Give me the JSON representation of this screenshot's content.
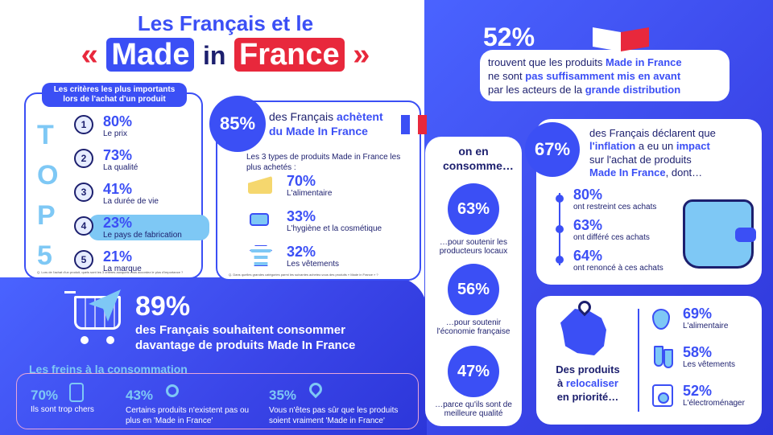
{
  "title": {
    "line1": "Les Français et le",
    "quote_open": "«",
    "made": "Made",
    "in": "in",
    "france": "France",
    "quote_close": "»"
  },
  "top5": {
    "header": "Les critères les plus importants lors de l'achat d'un produit",
    "letters": [
      "T",
      "O",
      "P",
      "5"
    ],
    "items": [
      {
        "rank": "1",
        "pct": "80%",
        "label": "Le prix"
      },
      {
        "rank": "2",
        "pct": "73%",
        "label": "La qualité"
      },
      {
        "rank": "3",
        "pct": "41%",
        "label": "La durée de vie"
      },
      {
        "rank": "4",
        "pct": "23%",
        "label": "Le pays de fabrication"
      },
      {
        "rank": "5",
        "pct": "21%",
        "label": "La marque"
      }
    ],
    "note": "Q. Lors de l'achat d'un produit, quels sont les 3 critères auxquels vous accordez le plus d'importance ?"
  },
  "buy": {
    "pct": "85%",
    "text1": "des Français",
    "text2": "achètent",
    "text3": "du Made In France",
    "types_title": "Les 3 types de produits  Made in France les plus achetés :",
    "items": [
      {
        "pct": "70%",
        "label": "L'alimentaire",
        "icon": "cheese-icon"
      },
      {
        "pct": "33%",
        "label": "L'hygiène et la cosmétique",
        "icon": "cosmetics-icon"
      },
      {
        "pct": "32%",
        "label": "Les vêtements",
        "icon": "tshirt-icon"
      }
    ],
    "note": "Q. Dans quelles grandes catégories parmi les suivantes achetez-vous des produits « Made in France » ?"
  },
  "consume": {
    "header": "on en consomme…",
    "items": [
      {
        "pct": "63%",
        "label": "…pour soutenir les producteurs locaux"
      },
      {
        "pct": "56%",
        "label": "…pour soutenir l'économie française"
      },
      {
        "pct": "47%",
        "label": "…parce qu'ils sont de meilleure qualité"
      }
    ]
  },
  "stat52": {
    "pct": "52%",
    "line1a": "trouvent que les produits",
    "line1b": "Made in France",
    "line2a": "ne sont",
    "line2b": "pas suffisamment mis en avant",
    "line3a": "par les acteurs de la",
    "line3b": "grande distribution"
  },
  "inflation": {
    "pct": "67%",
    "line1": "des Français déclarent que",
    "line2a": "l'inflation",
    "line2b": "a eu un",
    "line2c": "impact",
    "line3": "sur l'achat de produits",
    "line4a": "Made In France",
    "line4b": ", dont…",
    "items": [
      {
        "pct": "80%",
        "label": "ont restreint ces achats"
      },
      {
        "pct": "63%",
        "label": "ont différé ces achats"
      },
      {
        "pct": "64%",
        "label": "ont renoncé à ces achats"
      }
    ]
  },
  "wish": {
    "pct": "89%",
    "line1": "des Français souhaitent consommer",
    "line2": "davantage de produits Made In France"
  },
  "brakes": {
    "header": "Les freins à la consommation",
    "items": [
      {
        "pct": "70%",
        "label": "Ils sont trop chers"
      },
      {
        "pct": "43%",
        "label": "Certains produits n'existent pas ou plus en 'Made in France'"
      },
      {
        "pct": "35%",
        "label": "Vous n'êtes pas sûr que les produits soient vraiment 'Made in France'"
      }
    ]
  },
  "relocate": {
    "line1": "Des produits",
    "line2": "à",
    "line2b": "relocaliser",
    "line3": "en priorité…",
    "items": [
      {
        "pct": "69%",
        "label": "L'alimentaire",
        "icon": "strawberry-icon"
      },
      {
        "pct": "58%",
        "label": "Les vêtements",
        "icon": "socks-icon"
      },
      {
        "pct": "52%",
        "label": "L'électroménager",
        "icon": "washing-machine-icon"
      }
    ]
  },
  "colors": {
    "primary": "#3b4ff5",
    "navy": "#1c1f6e",
    "red": "#e8283c",
    "light": "#7ec8f5"
  }
}
